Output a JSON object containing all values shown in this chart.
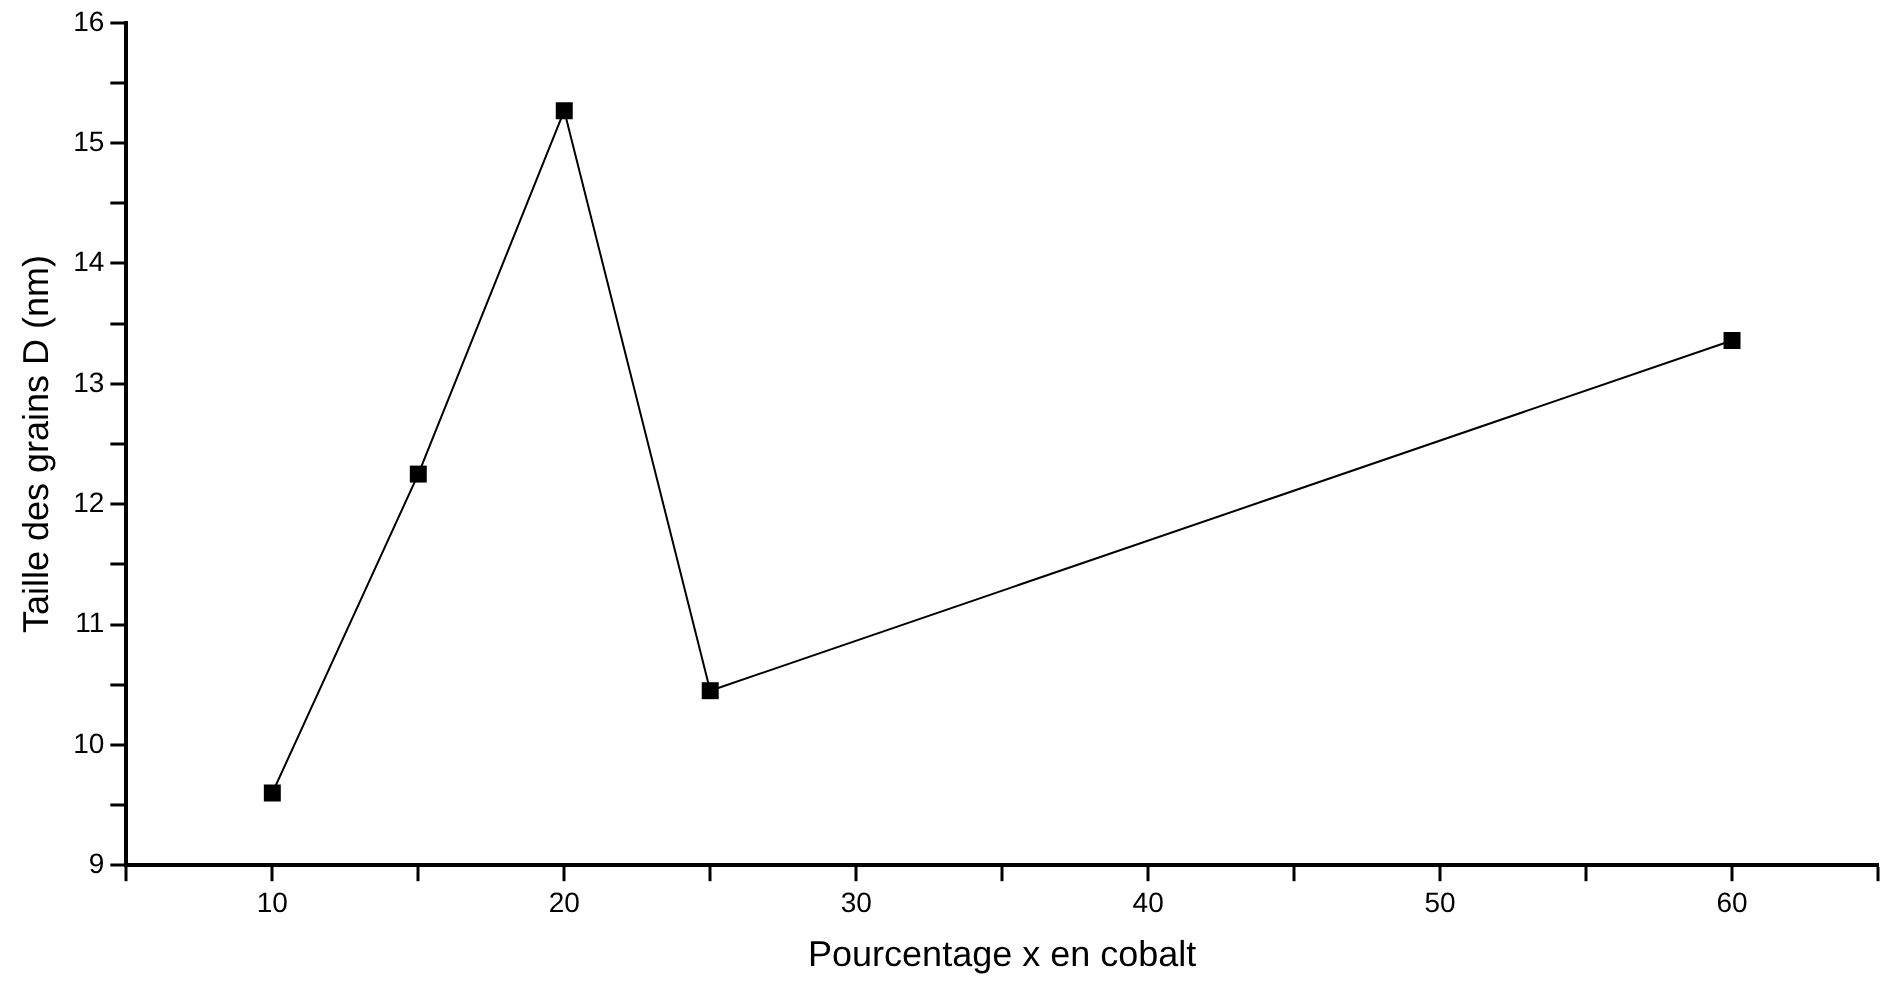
{
  "chart_data": {
    "type": "line",
    "xlabel": "Pourcentage x en cobalt",
    "ylabel": "Taille des grains D (nm)",
    "x": [
      10,
      15,
      20,
      25,
      60
    ],
    "series": [
      {
        "color": "#000000",
        "values": [
          9.6,
          12.25,
          15.27,
          10.45,
          13.36
        ]
      }
    ],
    "xlim": [
      5,
      65
    ],
    "xticks": [
      {
        "value": 5,
        "label": null
      },
      10,
      {
        "value": 15,
        "label": null
      },
      20,
      {
        "value": 25,
        "label": null
      },
      30,
      {
        "value": 35,
        "label": null
      },
      40,
      {
        "value": 45,
        "label": null
      },
      50,
      {
        "value": 55,
        "label": null
      },
      60,
      {
        "value": 65,
        "label": null
      }
    ],
    "ylim": [
      9,
      16
    ],
    "yticks": [
      9,
      {
        "value": 9.5,
        "label": null
      },
      10,
      {
        "value": 10.5,
        "label": null
      },
      11,
      {
        "value": 11.5,
        "label": null
      },
      12,
      {
        "value": 12.5,
        "label": null
      },
      13,
      {
        "value": 13.5,
        "label": null
      },
      14,
      {
        "value": 14.5,
        "label": null
      },
      15,
      {
        "value": 15.5,
        "label": null
      },
      16
    ],
    "grid": false,
    "legend": false,
    "marker": "square",
    "line_style": "solid"
  }
}
